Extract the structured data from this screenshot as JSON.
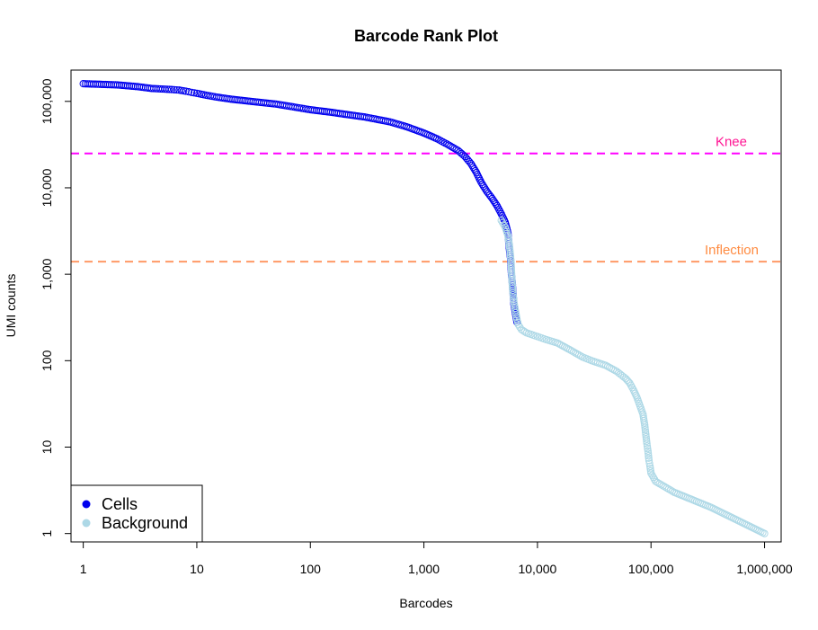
{
  "chart_data": {
    "type": "scatter",
    "title": "Barcode Rank Plot",
    "xlabel": "Barcodes",
    "ylabel": "UMI counts",
    "x_scale": "log",
    "y_scale": "log",
    "xlim": [
      0.78,
      1400000
    ],
    "ylim": [
      0.8,
      230000
    ],
    "x_ticks": [
      1,
      10,
      100,
      1000,
      10000,
      100000,
      1000000
    ],
    "x_tick_labels": [
      "1",
      "10",
      "100",
      "1,000",
      "10,000",
      "100,000",
      "1,000,000"
    ],
    "y_ticks": [
      1,
      10,
      100,
      1000,
      10000,
      100000
    ],
    "y_tick_labels": [
      "1",
      "10",
      "100",
      "1,000",
      "10,000",
      "100,000"
    ],
    "grid": false,
    "legend_position": "bottom-left",
    "series": [
      {
        "name": "Cells",
        "color": "#0000ee",
        "points": [
          [
            1,
            160000
          ],
          [
            2,
            155000
          ],
          [
            3,
            148000
          ],
          [
            4,
            141000
          ],
          [
            5,
            139000
          ],
          [
            6,
            137000
          ],
          [
            7,
            135000
          ],
          [
            8,
            131000
          ],
          [
            9,
            127000
          ],
          [
            10,
            124000
          ],
          [
            12,
            118000
          ],
          [
            15,
            112000
          ],
          [
            20,
            106000
          ],
          [
            30,
            100000
          ],
          [
            50,
            93000
          ],
          [
            80,
            84000
          ],
          [
            100,
            80000
          ],
          [
            150,
            75000
          ],
          [
            200,
            71000
          ],
          [
            300,
            66000
          ],
          [
            500,
            58000
          ],
          [
            700,
            51000
          ],
          [
            1000,
            43000
          ],
          [
            1300,
            37000
          ],
          [
            1600,
            32000
          ],
          [
            2000,
            27000
          ],
          [
            2300,
            23000
          ],
          [
            2600,
            19000
          ],
          [
            2900,
            15000
          ],
          [
            3200,
            11500
          ],
          [
            3600,
            9000
          ],
          [
            4000,
            7500
          ],
          [
            4400,
            6200
          ],
          [
            4800,
            5000
          ],
          [
            5200,
            4000
          ],
          [
            5500,
            3000
          ],
          [
            5650,
            2000
          ],
          [
            5800,
            1500
          ],
          [
            5900,
            1000
          ],
          [
            6000,
            800
          ],
          [
            6100,
            600
          ],
          [
            6200,
            450
          ],
          [
            6400,
            350
          ],
          [
            6600,
            280
          ]
        ]
      },
      {
        "name": "Background",
        "color": "#add8e6",
        "points": [
          [
            4800,
            4200
          ],
          [
            5200,
            3500
          ],
          [
            5500,
            2800
          ],
          [
            5700,
            2000
          ],
          [
            5850,
            1400
          ],
          [
            5950,
            900
          ],
          [
            6050,
            650
          ],
          [
            6200,
            480
          ],
          [
            6400,
            380
          ],
          [
            6600,
            300
          ],
          [
            6800,
            260
          ],
          [
            7200,
            230
          ],
          [
            8000,
            210
          ],
          [
            10000,
            190
          ],
          [
            12000,
            175
          ],
          [
            15000,
            160
          ],
          [
            20000,
            130
          ],
          [
            25000,
            110
          ],
          [
            30000,
            100
          ],
          [
            40000,
            88
          ],
          [
            50000,
            75
          ],
          [
            60000,
            62
          ],
          [
            65000,
            55
          ],
          [
            70000,
            46
          ],
          [
            75000,
            38
          ],
          [
            80000,
            30
          ],
          [
            85000,
            24
          ],
          [
            88000,
            18
          ],
          [
            90000,
            14
          ],
          [
            92000,
            11
          ],
          [
            94000,
            9
          ],
          [
            96000,
            7
          ],
          [
            98000,
            6
          ],
          [
            100000,
            5
          ],
          [
            110000,
            4
          ],
          [
            160000,
            3
          ],
          [
            340000,
            2
          ],
          [
            1000000,
            1
          ]
        ]
      }
    ],
    "hlines": [
      {
        "name": "Knee",
        "y": 25000,
        "color": "#ff00ff",
        "label_color": "#ff1493"
      },
      {
        "name": "Inflection",
        "y": 1400,
        "color": "#ff9966",
        "label_color": "#ff8c42"
      }
    ]
  }
}
